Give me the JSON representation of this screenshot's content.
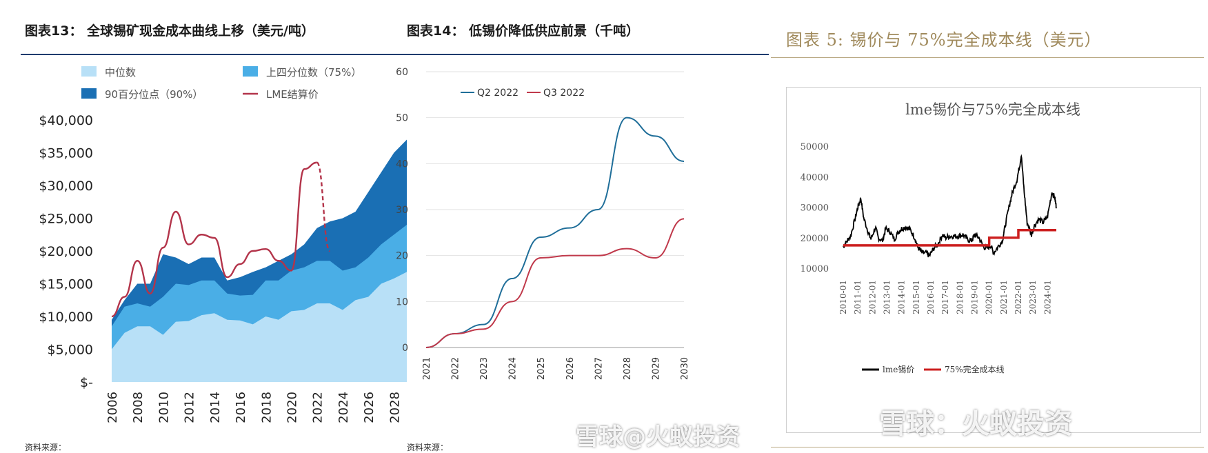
{
  "titles": {
    "chart13": "图表13： 全球锡矿现金成本曲线上移（美元/吨）",
    "chart14": "图表14： 低锡价降低供应前景（千吨）",
    "chart5": "图表 5: 锡价与 75%完全成本线（美元）"
  },
  "watermark": {
    "main": "雪球：火蚁投资",
    "partial": "雪球@火蚁投资"
  },
  "sources": {
    "left": "资料来源：",
    "middle": "资料来源："
  },
  "colors": {
    "light_blue": "#b8e0f7",
    "mid_blue": "#4aaee6",
    "dark_blue": "#1a6fb4",
    "lme_red": "#b3344a",
    "q2_blue": "#1f6e99",
    "q3_red": "#c0394b",
    "title_gold": "#a08a5c",
    "cost_red": "#cc1f1f"
  },
  "chart_data": [
    {
      "type": "area",
      "title": "全球锡矿现金成本曲线上移（美元/吨）",
      "x": [
        2006,
        2007,
        2008,
        2009,
        2010,
        2011,
        2012,
        2013,
        2014,
        2015,
        2016,
        2017,
        2018,
        2019,
        2020,
        2021,
        2022,
        2023,
        2024,
        2025,
        2026,
        2027,
        2028,
        2029
      ],
      "x_tick_labels": [
        "2006",
        "2008",
        "2010",
        "2012",
        "2014",
        "2016",
        "2018",
        "2020",
        "2022",
        "2024",
        "2026",
        "2028"
      ],
      "y_tick_labels": [
        "$-",
        "$5,000",
        "$10,000",
        "$15,000",
        "$20,000",
        "$25,000",
        "$30,000",
        "$35,000",
        "$40,000"
      ],
      "ylim": [
        0,
        40000
      ],
      "series": [
        {
          "name": "中位数",
          "values": [
            5000,
            7500,
            8500,
            8500,
            7200,
            9200,
            9300,
            10200,
            10500,
            9500,
            9400,
            8800,
            10000,
            9500,
            10800,
            11000,
            12000,
            12000,
            11000,
            12500,
            13000,
            15000,
            15800,
            16800
          ]
        },
        {
          "name": "上四分位数（75%）",
          "values": [
            8500,
            11500,
            12000,
            11500,
            13000,
            15000,
            14800,
            15500,
            15500,
            13500,
            13200,
            13300,
            15500,
            15500,
            17000,
            17500,
            18500,
            18500,
            17000,
            17500,
            19000,
            21000,
            22500,
            24000
          ]
        },
        {
          "name": "90百分位点（90%）",
          "values": [
            9500,
            12500,
            15000,
            15000,
            19500,
            19000,
            18000,
            19000,
            19000,
            15500,
            16000,
            16800,
            17500,
            18500,
            19500,
            21000,
            23500,
            24500,
            25000,
            26000,
            29000,
            32000,
            35000,
            37000
          ]
        }
      ],
      "lme": {
        "name": "LME结算价",
        "x": [
          2006,
          2007,
          2008,
          2009,
          2010,
          2011,
          2012,
          2013,
          2014,
          2015,
          2016,
          2017,
          2018,
          2019,
          2020,
          2021,
          2022,
          2023
        ],
        "values": [
          10000,
          13000,
          18500,
          13500,
          20500,
          26000,
          21000,
          22500,
          22000,
          16000,
          18000,
          20000,
          20300,
          18500,
          17000,
          32500,
          33500,
          20000
        ],
        "projected_from": 2022
      },
      "legend": [
        "中位数",
        "上四分位数（75%）",
        "90百分位点（90%）",
        "LME结算价"
      ]
    },
    {
      "type": "line",
      "title": "低锡价降低供应前景（千吨）",
      "x": [
        "2021",
        "2022",
        "2023",
        "2024",
        "2025",
        "2026",
        "2027",
        "2028",
        "2029",
        "2030"
      ],
      "ylim": [
        0,
        60
      ],
      "y_ticks": [
        0,
        10,
        20,
        30,
        40,
        50,
        60
      ],
      "series": [
        {
          "name": "Q2 2022",
          "values": [
            0,
            3,
            5,
            15,
            24,
            26,
            30,
            50,
            46,
            40.5
          ]
        },
        {
          "name": "Q3 2022",
          "values": [
            0,
            3,
            4,
            10,
            19.5,
            20,
            20,
            21.5,
            19.5,
            28
          ]
        }
      ]
    },
    {
      "type": "line",
      "title": "lme锡价与75%完全成本线",
      "x_tick_labels": [
        "2010-01",
        "2011-01",
        "2012-01",
        "2013-01",
        "2014-01",
        "2015-01",
        "2016-01",
        "2017-01",
        "2018-01",
        "2019-01",
        "2020-01",
        "2021-01",
        "2022-01",
        "2023-01",
        "2024-01"
      ],
      "y_tick_labels": [
        "10000",
        "20000",
        "30000",
        "40000",
        "50000"
      ],
      "ylim": [
        10000,
        50000
      ],
      "series": [
        {
          "name": "lme锡价",
          "x": [
            2010.0,
            2010.2,
            2010.5,
            2010.8,
            2011.0,
            2011.2,
            2011.4,
            2011.7,
            2011.9,
            2012.2,
            2012.4,
            2012.7,
            2012.9,
            2013.2,
            2013.5,
            2013.8,
            2014.0,
            2014.3,
            2014.6,
            2014.9,
            2015.1,
            2015.4,
            2015.7,
            2015.9,
            2016.2,
            2016.5,
            2016.8,
            2017.0,
            2017.3,
            2017.6,
            2017.9,
            2018.2,
            2018.5,
            2018.8,
            2019.0,
            2019.3,
            2019.6,
            2019.9,
            2020.1,
            2020.3,
            2020.6,
            2020.9,
            2021.1,
            2021.4,
            2021.6,
            2021.9,
            2022.1,
            2022.2,
            2022.4,
            2022.6,
            2022.9,
            2023.1,
            2023.4,
            2023.7,
            2024.0,
            2024.3,
            2024.5,
            2024.6
          ],
          "values": [
            17000,
            18500,
            20500,
            26000,
            30000,
            33000,
            26500,
            22000,
            19500,
            23500,
            20000,
            19000,
            23000,
            22000,
            19500,
            22000,
            23000,
            23500,
            22500,
            20000,
            17000,
            15000,
            15000,
            14000,
            16500,
            18000,
            21000,
            20000,
            20500,
            20500,
            20500,
            21000,
            19500,
            19000,
            21000,
            20000,
            17000,
            16500,
            17500,
            15000,
            17000,
            19000,
            24000,
            31000,
            35000,
            39000,
            44000,
            47000,
            35000,
            25000,
            21000,
            24000,
            26000,
            25000,
            27000,
            35000,
            33000,
            30000
          ]
        },
        {
          "name": "75%完全成本线",
          "x": [
            2010.0,
            2020.0,
            2020.0,
            2022.0,
            2022.0,
            2024.6
          ],
          "values": [
            17500,
            17500,
            20000,
            20000,
            22500,
            22500
          ]
        }
      ]
    }
  ]
}
